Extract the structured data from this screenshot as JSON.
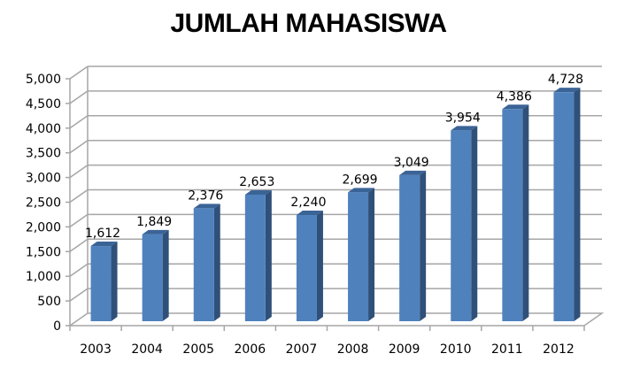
{
  "chart_data": {
    "type": "bar",
    "title": "JUMLAH MAHASISWA",
    "xlabel": "",
    "ylabel": "",
    "categories": [
      "2003",
      "2004",
      "2005",
      "2006",
      "2007",
      "2008",
      "2009",
      "2010",
      "2011",
      "2012"
    ],
    "values": [
      1612,
      1849,
      2376,
      2653,
      2240,
      2699,
      3049,
      3954,
      4386,
      4728
    ],
    "data_labels": [
      "1,612",
      "1,849",
      "2,376",
      "2,653",
      "2,240",
      "2,699",
      "3,049",
      "3,954",
      "4,386",
      "4,728"
    ],
    "ylim": [
      0,
      5000
    ],
    "yticks": [
      0,
      500,
      1000,
      1500,
      2000,
      2500,
      3000,
      3500,
      4000,
      4500,
      5000
    ],
    "ytick_labels": [
      "0",
      "500",
      "1,000",
      "1,500",
      "2,000",
      "2,500",
      "3,000",
      "3,500",
      "4,000",
      "4,500",
      "5,000"
    ],
    "grid": true,
    "legend": null,
    "style": "3d-column",
    "colors": {
      "bar_front": "#4f81bd",
      "bar_side": "#2f5079",
      "bar_top": "#3b6496",
      "grid": "#a6a6a6"
    }
  }
}
